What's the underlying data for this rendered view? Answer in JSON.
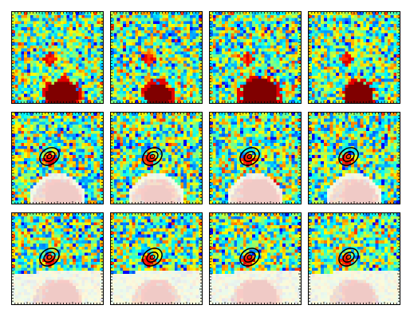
{
  "figure": {
    "rows": [
      {
        "row": "data",
        "panels": [
          {
            "id": "r1c1",
            "contours": false,
            "mask": "none"
          },
          {
            "id": "r1c2",
            "contours": false,
            "mask": "none"
          },
          {
            "id": "r1c3",
            "contours": false,
            "mask": "none"
          },
          {
            "id": "r1c4",
            "contours": false,
            "mask": "none"
          }
        ]
      },
      {
        "row": "masked-neighbor",
        "panels": [
          {
            "id": "r2c1",
            "contours": true,
            "mask": "blob"
          },
          {
            "id": "r2c2",
            "contours": true,
            "mask": "blob"
          },
          {
            "id": "r2c3",
            "contours": true,
            "mask": "blob"
          },
          {
            "id": "r2c4",
            "contours": true,
            "mask": "blob"
          }
        ]
      },
      {
        "row": "masked-lower-half",
        "panels": [
          {
            "id": "r3c1",
            "contours": true,
            "mask": "lower-half"
          },
          {
            "id": "r3c2",
            "contours": true,
            "mask": "lower-half"
          },
          {
            "id": "r3c3",
            "contours": true,
            "mask": "lower-half"
          },
          {
            "id": "r3c4",
            "contours": true,
            "mask": "lower-half"
          }
        ]
      }
    ],
    "colormap": "jet",
    "contour_color": "#000000",
    "mask_tint": "#fff6ee"
  }
}
